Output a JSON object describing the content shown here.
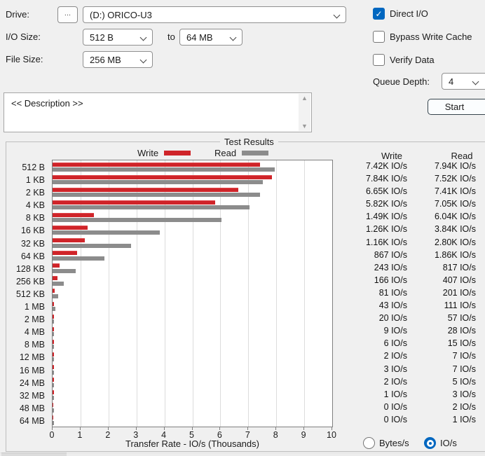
{
  "controls": {
    "drive_label": "Drive:",
    "browse_button": "...",
    "drive_value": "(D:) ORICO-U3",
    "io_size_label": "I/O Size:",
    "io_size_from": "512 B",
    "to_label": "to",
    "io_size_to": "64 MB",
    "file_size_label": "File Size:",
    "file_size_value": "256 MB",
    "direct_io": {
      "label": "Direct I/O",
      "checked": true
    },
    "bypass_write_cache": {
      "label": "Bypass Write Cache",
      "checked": false
    },
    "verify_data": {
      "label": "Verify Data",
      "checked": false
    },
    "queue_depth_label": "Queue Depth:",
    "queue_depth_value": "4",
    "start_button": "Start",
    "description_text": "<< Description >>"
  },
  "results": {
    "group_title": "Test Results",
    "legend": {
      "write": "Write",
      "read": "Read"
    },
    "table": {
      "write_header": "Write",
      "read_header": "Read",
      "rows": [
        {
          "size": "512 B",
          "write": "7.42K IO/s",
          "read": "7.94K IO/s"
        },
        {
          "size": "1 KB",
          "write": "7.84K IO/s",
          "read": "7.52K IO/s"
        },
        {
          "size": "2 KB",
          "write": "6.65K IO/s",
          "read": "7.41K IO/s"
        },
        {
          "size": "4 KB",
          "write": "5.82K IO/s",
          "read": "7.05K IO/s"
        },
        {
          "size": "8 KB",
          "write": "1.49K IO/s",
          "read": "6.04K IO/s"
        },
        {
          "size": "16 KB",
          "write": "1.26K IO/s",
          "read": "3.84K IO/s"
        },
        {
          "size": "32 KB",
          "write": "1.16K IO/s",
          "read": "2.80K IO/s"
        },
        {
          "size": "64 KB",
          "write": "867 IO/s",
          "read": "1.86K IO/s"
        },
        {
          "size": "128 KB",
          "write": "243 IO/s",
          "read": "817 IO/s"
        },
        {
          "size": "256 KB",
          "write": "166 IO/s",
          "read": "407 IO/s"
        },
        {
          "size": "512 KB",
          "write": "81 IO/s",
          "read": "201 IO/s"
        },
        {
          "size": "1 MB",
          "write": "43 IO/s",
          "read": "111 IO/s"
        },
        {
          "size": "2 MB",
          "write": "20 IO/s",
          "read": "57 IO/s"
        },
        {
          "size": "4 MB",
          "write": "9 IO/s",
          "read": "28 IO/s"
        },
        {
          "size": "8 MB",
          "write": "6 IO/s",
          "read": "15 IO/s"
        },
        {
          "size": "12 MB",
          "write": "2 IO/s",
          "read": "7 IO/s"
        },
        {
          "size": "16 MB",
          "write": "3 IO/s",
          "read": "7 IO/s"
        },
        {
          "size": "24 MB",
          "write": "2 IO/s",
          "read": "5 IO/s"
        },
        {
          "size": "32 MB",
          "write": "1 IO/s",
          "read": "3 IO/s"
        },
        {
          "size": "48 MB",
          "write": "0 IO/s",
          "read": "2 IO/s"
        },
        {
          "size": "64 MB",
          "write": "0 IO/s",
          "read": "1 IO/s"
        }
      ]
    },
    "units": {
      "bytes_label": "Bytes/s",
      "ios_label": "IO/s",
      "selected": "IO/s"
    }
  },
  "chart_data": {
    "type": "bar",
    "orientation": "horizontal",
    "title": "Test Results",
    "categories": [
      "512 B",
      "1 KB",
      "2 KB",
      "4 KB",
      "8 KB",
      "16 KB",
      "32 KB",
      "64 KB",
      "128 KB",
      "256 KB",
      "512 KB",
      "1 MB",
      "2 MB",
      "4 MB",
      "8 MB",
      "12 MB",
      "16 MB",
      "24 MB",
      "32 MB",
      "48 MB",
      "64 MB"
    ],
    "series": [
      {
        "name": "Write",
        "color": "#cf2429",
        "values": [
          7.42,
          7.84,
          6.65,
          5.82,
          1.49,
          1.26,
          1.16,
          0.867,
          0.243,
          0.166,
          0.081,
          0.043,
          0.02,
          0.009,
          0.006,
          0.002,
          0.003,
          0.002,
          0.001,
          0,
          0
        ]
      },
      {
        "name": "Read",
        "color": "#8c8c8c",
        "values": [
          7.94,
          7.52,
          7.41,
          7.05,
          6.04,
          3.84,
          2.8,
          1.86,
          0.817,
          0.407,
          0.201,
          0.111,
          0.057,
          0.028,
          0.015,
          0.007,
          0.007,
          0.005,
          0.003,
          0.002,
          0.001
        ]
      }
    ],
    "xlabel": "Transfer Rate - IO/s (Thousands)",
    "xlim": [
      0,
      10
    ],
    "xticks": [
      0,
      1,
      2,
      3,
      4,
      5,
      6,
      7,
      8,
      9,
      10
    ],
    "grid": true,
    "legend_position": "top"
  }
}
